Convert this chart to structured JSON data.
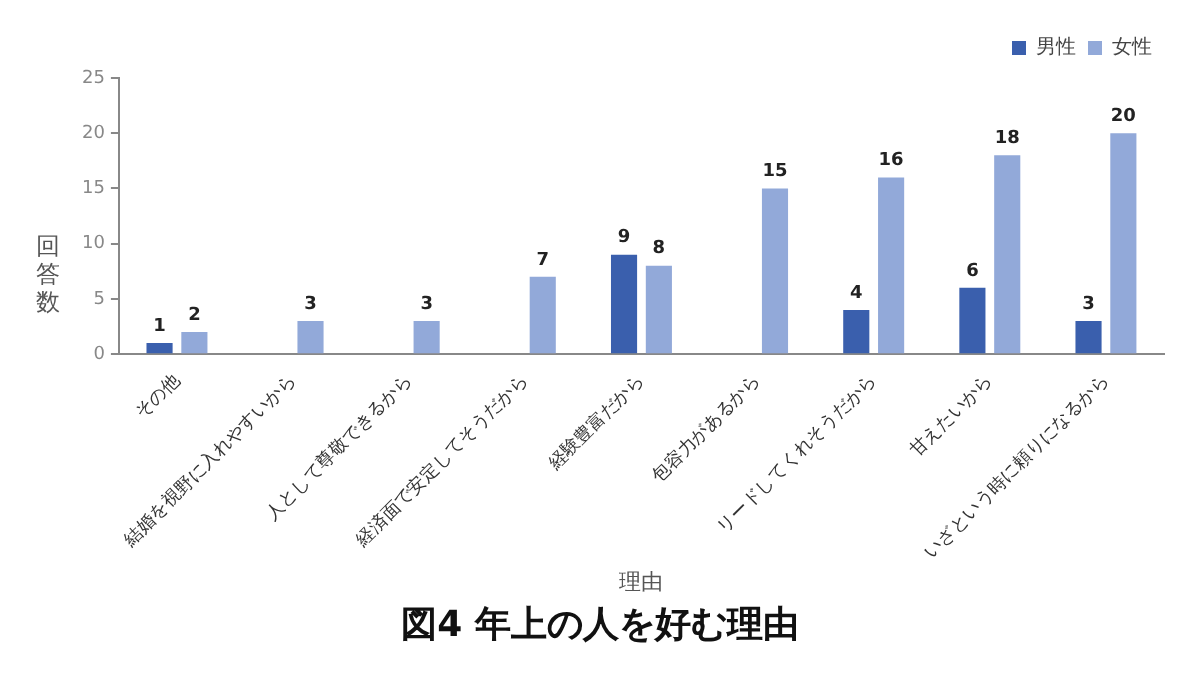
{
  "chart_data": {
    "type": "bar",
    "title": "図4 年上の人を好む理由",
    "xlabel": "理由",
    "ylabel": "回答数",
    "categories": [
      "その他",
      "結婚を視野に入れやすいから",
      "人として尊敬できるから",
      "経済面で安定してそうだから",
      "経験豊富だから",
      "包容力があるから",
      "リードしてくれそうだから",
      "甘えたいから",
      "いざという時に頼りになるから"
    ],
    "series": [
      {
        "name": "男性",
        "color": "#3a5fad",
        "values": [
          1,
          null,
          null,
          null,
          9,
          null,
          4,
          6,
          3
        ]
      },
      {
        "name": "女性",
        "color": "#92a9d9",
        "values": [
          2,
          3,
          3,
          7,
          8,
          15,
          16,
          18,
          20
        ]
      }
    ],
    "ylim": [
      0,
      25
    ],
    "yticks": [
      0,
      5,
      10,
      15,
      20,
      25
    ],
    "grid": false,
    "legend": "top right",
    "data_labels": true
  }
}
